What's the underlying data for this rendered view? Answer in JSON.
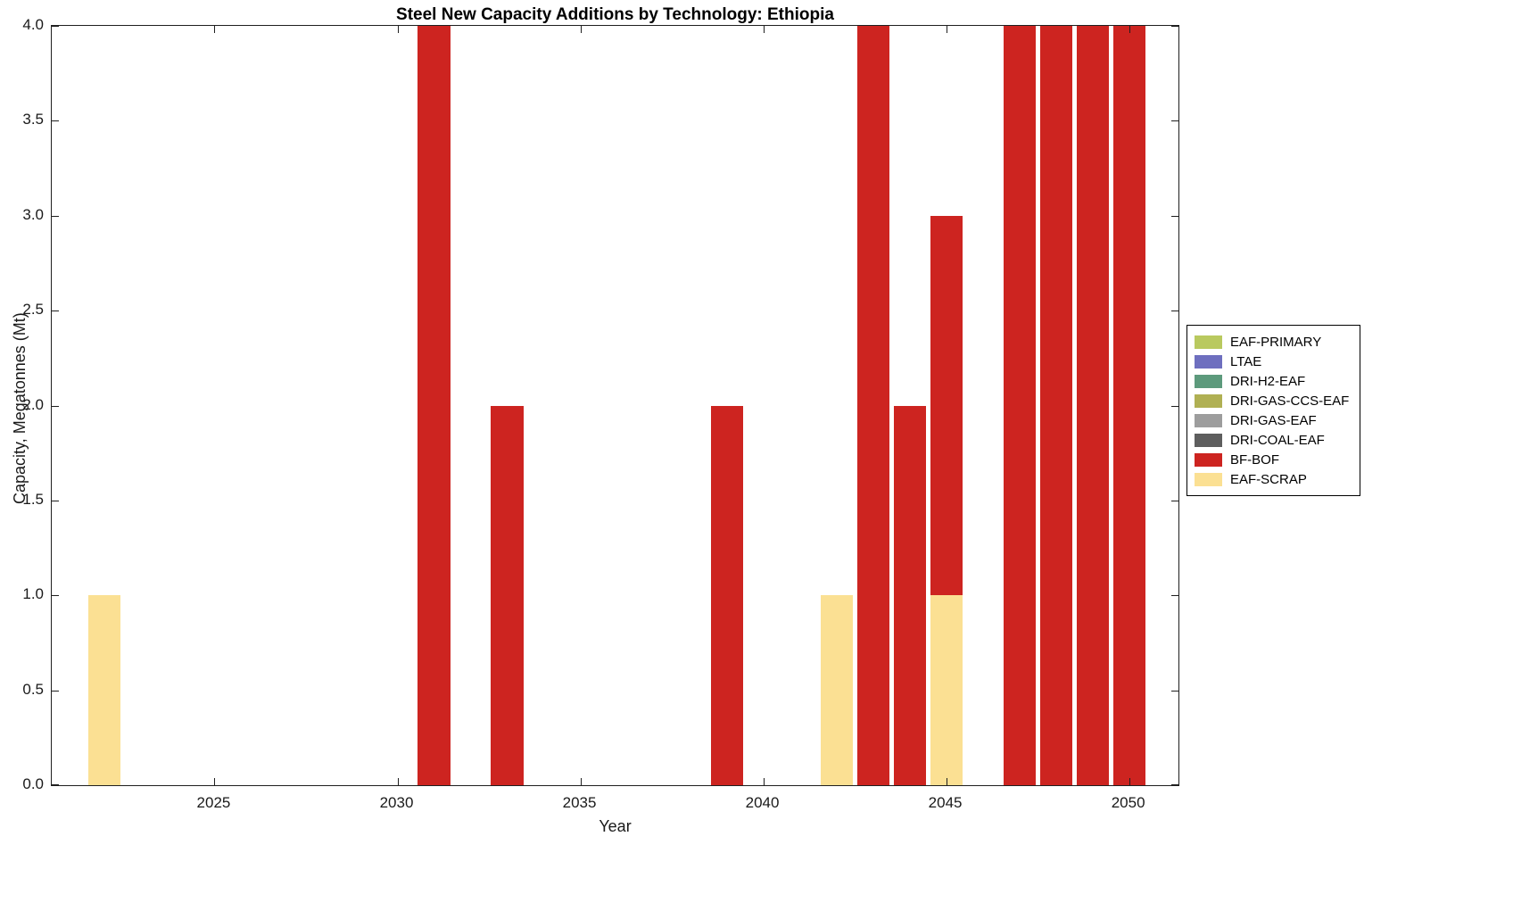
{
  "title": "Steel New Capacity Additions by Technology: Ethiopia",
  "axes": {
    "xlabel": "Year",
    "ylabel": "Capacity, Megatonnes (Mt)"
  },
  "chart_data": {
    "type": "bar",
    "stacked": true,
    "title": "Steel New Capacity Additions by Technology: Ethiopia",
    "xlabel": "Year",
    "ylabel": "Capacity, Megatonnes (Mt)",
    "xlim": [
      2020.55,
      2051.35
    ],
    "ylim": [
      0,
      4
    ],
    "x_ticks": [
      2025,
      2030,
      2035,
      2040,
      2045,
      2050
    ],
    "y_ticks": [
      0,
      0.5,
      1,
      1.5,
      2,
      2.5,
      3,
      3.5,
      4
    ],
    "y_tick_labels": [
      "0.0",
      "0.5",
      "1.0",
      "1.5",
      "2.0",
      "2.5",
      "3.0",
      "3.5",
      "4.0"
    ],
    "grid": false,
    "legend_position": "outside-right",
    "bar_width_years": 0.88,
    "plot_background": "#ffffff",
    "axis_color": "#1f1f1f",
    "technologies": [
      {
        "name": "EAF-PRIMARY",
        "color": "#b9c95f"
      },
      {
        "name": "LTAE",
        "color": "#6e6fbf"
      },
      {
        "name": "DRI-H2-EAF",
        "color": "#5d9a7c"
      },
      {
        "name": "DRI-GAS-CCS-EAF",
        "color": "#b0b053"
      },
      {
        "name": "DRI-GAS-EAF",
        "color": "#9d9d9d"
      },
      {
        "name": "DRI-COAL-EAF",
        "color": "#5e5e5e"
      },
      {
        "name": "BF-BOF",
        "color": "#cd2420"
      },
      {
        "name": "EAF-SCRAP",
        "color": "#fbe093"
      }
    ],
    "bars": [
      {
        "year": 2022,
        "segments": [
          {
            "tech": "EAF-SCRAP",
            "value": 1.0
          }
        ]
      },
      {
        "year": 2031,
        "segments": [
          {
            "tech": "BF-BOF",
            "value": 4.0
          }
        ]
      },
      {
        "year": 2033,
        "segments": [
          {
            "tech": "BF-BOF",
            "value": 2.0
          }
        ]
      },
      {
        "year": 2039,
        "segments": [
          {
            "tech": "BF-BOF",
            "value": 2.0
          }
        ]
      },
      {
        "year": 2042,
        "segments": [
          {
            "tech": "EAF-SCRAP",
            "value": 1.0
          }
        ]
      },
      {
        "year": 2043,
        "segments": [
          {
            "tech": "BF-BOF",
            "value": 4.0
          }
        ]
      },
      {
        "year": 2044,
        "segments": [
          {
            "tech": "BF-BOF",
            "value": 2.0
          }
        ]
      },
      {
        "year": 2045,
        "segments": [
          {
            "tech": "EAF-SCRAP",
            "value": 1.0
          },
          {
            "tech": "BF-BOF",
            "value": 2.0
          }
        ]
      },
      {
        "year": 2047,
        "segments": [
          {
            "tech": "BF-BOF",
            "value": 4.0
          }
        ]
      },
      {
        "year": 2048,
        "segments": [
          {
            "tech": "BF-BOF",
            "value": 4.0
          }
        ]
      },
      {
        "year": 2049,
        "segments": [
          {
            "tech": "BF-BOF",
            "value": 4.0
          }
        ]
      },
      {
        "year": 2050,
        "segments": [
          {
            "tech": "BF-BOF",
            "value": 4.0
          }
        ]
      }
    ]
  }
}
